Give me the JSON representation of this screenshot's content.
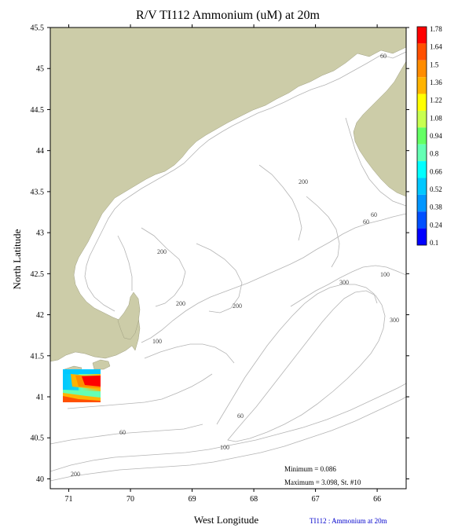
{
  "title": "R/V TI112 Ammonium (uM) at 20m",
  "xlabel": "West Longitude",
  "ylabel": "North Latitude",
  "x_ticks": [
    "71",
    "70",
    "69",
    "68",
    "67",
    "66"
  ],
  "y_ticks": [
    "45.5",
    "45",
    "44.5",
    "44",
    "43.5",
    "43",
    "42.5",
    "42",
    "41.5",
    "41",
    "40.5",
    "40"
  ],
  "colorbar": {
    "labels": [
      "1.78",
      "1.64",
      "1.5",
      "1.36",
      "1.22",
      "1.08",
      "0.94",
      "0.8",
      "0.66",
      "0.52",
      "0.38",
      "0.24",
      "0.1"
    ],
    "colors": [
      "#ff0000",
      "#ff5000",
      "#ff8c00",
      "#ffb400",
      "#ffff00",
      "#c8ff50",
      "#64ff64",
      "#64ffb4",
      "#00ffff",
      "#00c8ff",
      "#0096ff",
      "#0050ff",
      "#0000ff"
    ]
  },
  "contour_labels": {
    "c60_ne": "60",
    "c60_a": "60",
    "c60_b": "60",
    "c60_c": "60",
    "c60_d": "60",
    "c100_a": "100",
    "c100_b": "100",
    "c100_c": "100",
    "c200_a": "200",
    "c200_b": "200",
    "c200_c": "200",
    "c200_d": "200",
    "c300_a": "300",
    "c300_b": "300"
  },
  "stats": {
    "minimum": "Minimum = 0.086",
    "maximum": "Maximum = 3.098, St. #10"
  },
  "caption": "TI112 : Ammonium at 20m",
  "colors": {
    "land": "#cccca8",
    "contour": "#b4b4b4",
    "frame": "#000000"
  }
}
